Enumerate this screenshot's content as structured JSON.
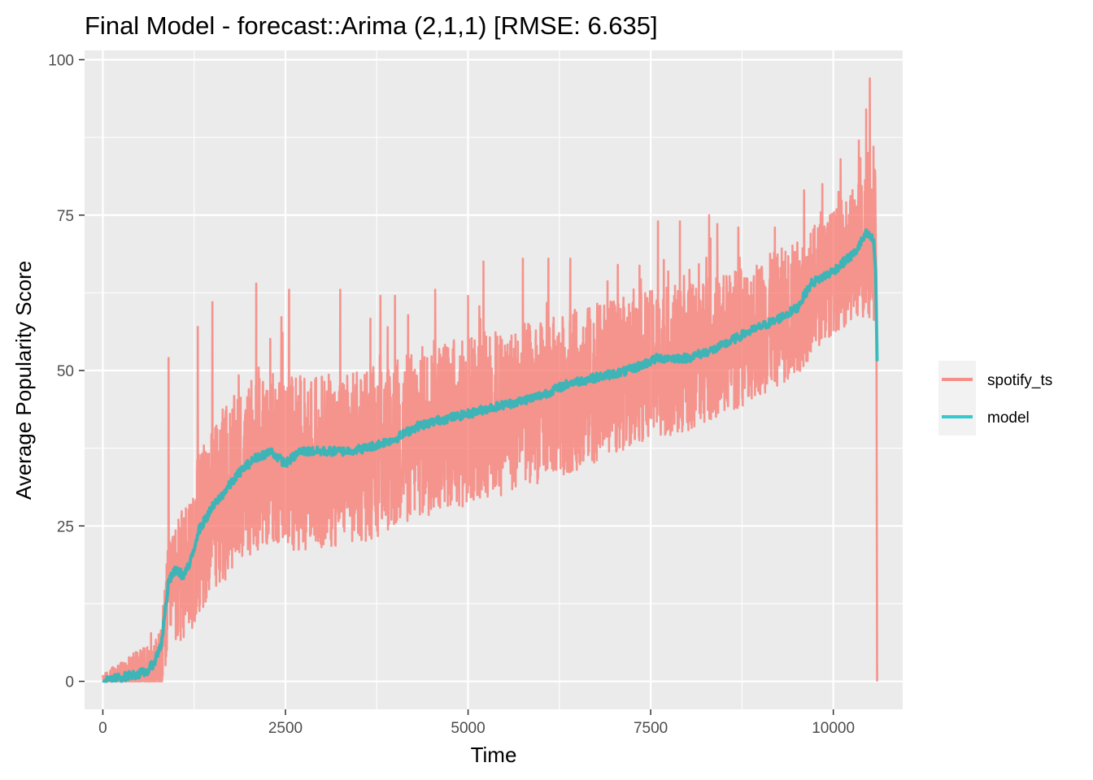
{
  "chart_data": {
    "type": "line",
    "title": "Final Model - forecast::Arima (2,1,1)     [RMSE: 6.635]",
    "xlabel": "Time",
    "ylabel": "Average Popularity Score",
    "xlim": [
      -250,
      10950
    ],
    "ylim": [
      -4.5,
      101.5
    ],
    "x_ticks": [
      0,
      2500,
      5000,
      7500,
      10000
    ],
    "x_tick_labels": [
      "0",
      "2500",
      "5000",
      "7500",
      "10000"
    ],
    "y_ticks": [
      0,
      25,
      50,
      75,
      100
    ],
    "y_tick_labels": [
      "0",
      "25",
      "50",
      "75",
      "100"
    ],
    "grid": true,
    "legend_position": "right",
    "n_points": 10600,
    "series": [
      {
        "name": "spotify_ts",
        "color": "#F8766D",
        "knots_x": [
          0,
          300,
          700,
          800,
          900,
          1100,
          1300,
          1500,
          1800,
          2100,
          2400,
          2600,
          3000,
          3500,
          4000,
          4500,
          5000,
          5500,
          6000,
          6500,
          7000,
          7500,
          8000,
          8500,
          9000,
          9500,
          9800,
          10000,
          10300,
          10550
        ],
        "knots_center": [
          0.3,
          0.8,
          1.5,
          3,
          14,
          17,
          23,
          28,
          32,
          35,
          36,
          35,
          35.5,
          36,
          38,
          41,
          42,
          43.5,
          45,
          47,
          49,
          51,
          52,
          54,
          57,
          60,
          64,
          66,
          69,
          71
        ],
        "knots_band": [
          0.8,
          3,
          5,
          6,
          9,
          11,
          13,
          14,
          14,
          14,
          14,
          14,
          14,
          14,
          14,
          14,
          14,
          13.5,
          13,
          13,
          12.5,
          12,
          12,
          11.5,
          11,
          11,
          10,
          10,
          11,
          13
        ],
        "spikes": [
          {
            "x": 900,
            "y": 52
          },
          {
            "x": 1300,
            "y": 57
          },
          {
            "x": 1500,
            "y": 61
          },
          {
            "x": 2100,
            "y": 64
          },
          {
            "x": 2550,
            "y": 63
          },
          {
            "x": 3250,
            "y": 63
          },
          {
            "x": 3800,
            "y": 62
          },
          {
            "x": 4000,
            "y": 62
          },
          {
            "x": 4550,
            "y": 63
          },
          {
            "x": 5000,
            "y": 62
          },
          {
            "x": 5750,
            "y": 68
          },
          {
            "x": 6100,
            "y": 68
          },
          {
            "x": 6400,
            "y": 68
          },
          {
            "x": 7050,
            "y": 67
          },
          {
            "x": 7600,
            "y": 74
          },
          {
            "x": 7900,
            "y": 74
          },
          {
            "x": 8300,
            "y": 75
          },
          {
            "x": 8700,
            "y": 73
          },
          {
            "x": 9200,
            "y": 73
          },
          {
            "x": 9600,
            "y": 79
          },
          {
            "x": 9850,
            "y": 80
          },
          {
            "x": 10100,
            "y": 84
          },
          {
            "x": 10350,
            "y": 87
          },
          {
            "x": 10450,
            "y": 92
          },
          {
            "x": 10500,
            "y": 97
          },
          {
            "x": 10550,
            "y": 86
          }
        ],
        "tail": [
          {
            "x": 10590,
            "y": 62
          },
          {
            "x": 10600,
            "y": 0
          }
        ]
      },
      {
        "name": "model",
        "color": "#00BFC4",
        "knots_x": [
          0,
          200,
          400,
          600,
          700,
          800,
          850,
          900,
          1000,
          1100,
          1200,
          1300,
          1500,
          1700,
          1900,
          2100,
          2300,
          2500,
          2700,
          3000,
          3300,
          3600,
          4000,
          4300,
          4600,
          5000,
          5300,
          5700,
          6000,
          6400,
          6800,
          7200,
          7600,
          8000,
          8400,
          8800,
          9200,
          9500,
          9700,
          10000,
          10300,
          10450,
          10550,
          10580,
          10600
        ],
        "values": [
          0,
          0.5,
          1,
          1.5,
          3,
          6,
          11,
          16,
          18,
          17,
          19,
          24,
          28,
          31,
          34,
          36,
          37,
          35,
          37,
          37,
          37,
          37.5,
          39,
          41,
          42,
          43,
          44,
          45,
          46,
          48,
          49,
          50,
          52,
          52,
          53.5,
          56,
          58,
          60,
          64,
          66,
          69,
          72,
          71,
          66,
          51.5
        ]
      }
    ]
  }
}
